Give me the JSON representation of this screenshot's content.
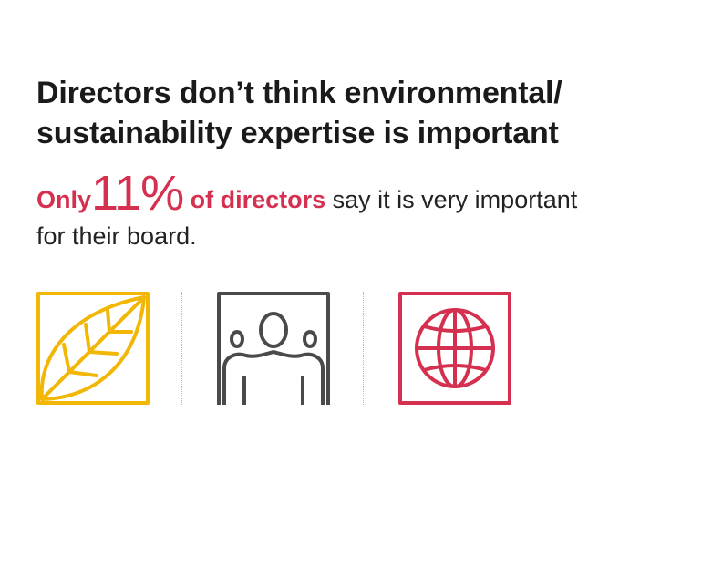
{
  "headline": {
    "line1": "Directors don’t think environmental/",
    "line2": "sustainability expertise is important"
  },
  "stat": {
    "prefix": "Only",
    "number": "11%",
    "subject": "of directors",
    "rest_line1": "say it is very important",
    "rest_line2": "for their board."
  },
  "icons": [
    {
      "name": "leaf-icon",
      "color": "#f2b705"
    },
    {
      "name": "people-icon",
      "color": "#4a4a4a"
    },
    {
      "name": "globe-icon",
      "color": "#d5304f"
    }
  ],
  "colors": {
    "accent": "#d5304f",
    "text": "#1a1a1a"
  }
}
